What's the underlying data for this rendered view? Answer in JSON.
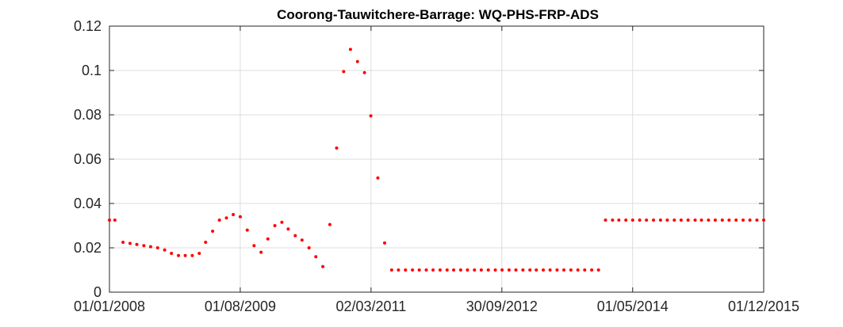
{
  "chart_data": {
    "type": "scatter",
    "title": "Coorong-Tauwitchere-Barrage: WQ-PHS-FRP-ADS",
    "xlabel": "",
    "ylabel": "",
    "x_tick_labels": [
      "01/01/2008",
      "01/08/2009",
      "02/03/2011",
      "30/09/2012",
      "01/05/2014",
      "01/12/2015"
    ],
    "xlim": [
      "2008-01-01",
      "2015-12-01"
    ],
    "ylim": [
      0,
      0.12
    ],
    "y_ticks": [
      0,
      0.02,
      0.04,
      0.06,
      0.08,
      0.1,
      0.12
    ],
    "y_tick_labels": [
      "0",
      "0.02",
      "0.04",
      "0.06",
      "0.08",
      "0.1",
      "0.12"
    ],
    "grid": true,
    "marker_color": "#ff0000",
    "series": [
      {
        "x": [
          "2008-01-01",
          "2008-01-25",
          "2008-03-01",
          "2008-04-01",
          "2008-05-01",
          "2008-06-01",
          "2008-07-01",
          "2008-08-01",
          "2008-09-01",
          "2008-10-01",
          "2008-11-01",
          "2008-12-01",
          "2009-01-01",
          "2009-02-01",
          "2009-03-01",
          "2009-04-01",
          "2009-05-01",
          "2009-06-01",
          "2009-07-01",
          "2009-08-01",
          "2009-09-01",
          "2009-10-01",
          "2009-11-01",
          "2009-12-01",
          "2010-01-01",
          "2010-02-01",
          "2010-03-01",
          "2010-04-01",
          "2010-05-01",
          "2010-06-01",
          "2010-07-01",
          "2010-08-01",
          "2010-09-01",
          "2010-10-01",
          "2010-11-01",
          "2010-12-01",
          "2011-01-01",
          "2011-02-01",
          "2011-03-01",
          "2011-04-01",
          "2011-05-01",
          "2011-06-01",
          "2011-07-01",
          "2011-08-01",
          "2011-09-01",
          "2011-10-01",
          "2011-11-01",
          "2011-12-01",
          "2012-01-01",
          "2012-02-01",
          "2012-03-01",
          "2012-04-01",
          "2012-05-01",
          "2012-06-01",
          "2012-07-01",
          "2012-08-01",
          "2012-09-01",
          "2012-10-01",
          "2012-11-01",
          "2012-12-01",
          "2013-01-01",
          "2013-02-01",
          "2013-03-01",
          "2013-04-01",
          "2013-05-01",
          "2013-06-01",
          "2013-07-01",
          "2013-08-01",
          "2013-09-01",
          "2013-10-01",
          "2013-11-01",
          "2013-12-01",
          "2014-01-01",
          "2014-02-01",
          "2014-03-01",
          "2014-04-01",
          "2014-05-01",
          "2014-06-01",
          "2014-07-01",
          "2014-08-01",
          "2014-09-01",
          "2014-10-01",
          "2014-11-01",
          "2014-12-01",
          "2015-01-01",
          "2015-02-01",
          "2015-03-01",
          "2015-04-01",
          "2015-05-01",
          "2015-06-01",
          "2015-07-01",
          "2015-08-01",
          "2015-09-01",
          "2015-10-01",
          "2015-11-01",
          "2015-12-01"
        ],
        "y": [
          0.0325,
          0.0325,
          0.0225,
          0.022,
          0.0215,
          0.021,
          0.0205,
          0.02,
          0.019,
          0.0175,
          0.0165,
          0.0165,
          0.0165,
          0.0175,
          0.0225,
          0.0275,
          0.0325,
          0.0335,
          0.035,
          0.034,
          0.028,
          0.021,
          0.018,
          0.024,
          0.03,
          0.0315,
          0.0285,
          0.0255,
          0.0235,
          0.02,
          0.016,
          0.0115,
          0.0305,
          0.065,
          0.0995,
          0.1095,
          0.104,
          0.099,
          0.0795,
          0.0515,
          0.0222,
          0.01,
          0.01,
          0.01,
          0.01,
          0.01,
          0.01,
          0.01,
          0.01,
          0.01,
          0.01,
          0.01,
          0.01,
          0.01,
          0.01,
          0.01,
          0.01,
          0.01,
          0.01,
          0.01,
          0.01,
          0.01,
          0.01,
          0.01,
          0.01,
          0.01,
          0.01,
          0.01,
          0.01,
          0.01,
          0.01,
          0.01,
          0.0325,
          0.0325,
          0.0325,
          0.0325,
          0.0325,
          0.0325,
          0.0325,
          0.0325,
          0.0325,
          0.0325,
          0.0325,
          0.0325,
          0.0325,
          0.0325,
          0.0325,
          0.0325,
          0.0325,
          0.0325,
          0.0325,
          0.0325,
          0.0325,
          0.0325,
          0.0325,
          0.0325
        ]
      }
    ]
  }
}
